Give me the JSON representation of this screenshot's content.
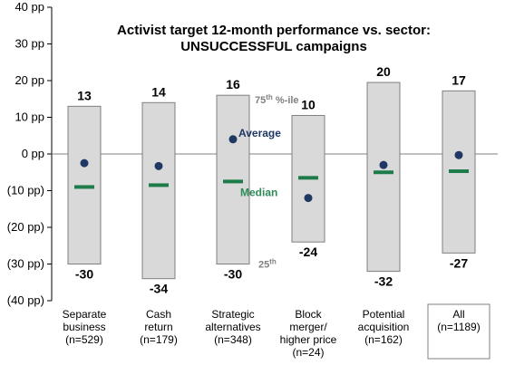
{
  "chart_data": {
    "type": "box-range",
    "title_lines": [
      "Activist target 12-month performance vs. sector:",
      "UNSUCCESSFUL campaigns"
    ],
    "y_ticks": [
      {
        "value": 40,
        "label": "40 pp"
      },
      {
        "value": 30,
        "label": "30 pp"
      },
      {
        "value": 20,
        "label": "20 pp"
      },
      {
        "value": 10,
        "label": "10 pp"
      },
      {
        "value": 0,
        "label": "0 pp"
      },
      {
        "value": -10,
        "label": "(10 pp)"
      },
      {
        "value": -20,
        "label": "(20 pp)"
      },
      {
        "value": -30,
        "label": "(30 pp)"
      },
      {
        "value": -40,
        "label": "(40 pp)"
      }
    ],
    "ylim": [
      -40,
      40
    ],
    "categories": [
      {
        "label_lines": [
          "Separate",
          "business",
          "(n=529)"
        ],
        "p75": 13,
        "p25": -30,
        "average": -2.5,
        "median": -9,
        "top_label": "13",
        "bottom_label": "-30",
        "boxed": false
      },
      {
        "label_lines": [
          "Cash",
          "return",
          "(n=179)"
        ],
        "p75": 14,
        "p25": -34,
        "average": -3.3,
        "median": -8.5,
        "top_label": "14",
        "bottom_label": "-34",
        "boxed": false
      },
      {
        "label_lines": [
          "Strategic",
          "alternatives",
          "(n=348)"
        ],
        "p75": 16,
        "p25": -30,
        "average": 4,
        "median": -7.5,
        "top_label": "16",
        "bottom_label": "-30",
        "boxed": false
      },
      {
        "label_lines": [
          "Block",
          "merger/",
          "higher price",
          "(n=24)"
        ],
        "p75": 10.5,
        "p25": -24,
        "average": -12,
        "median": -6.5,
        "top_label": "10",
        "bottom_label": "-24",
        "boxed": false
      },
      {
        "label_lines": [
          "Potential",
          "acquisition",
          "(n=162)"
        ],
        "p75": 19.5,
        "p25": -32,
        "average": -3,
        "median": -5,
        "top_label": "20",
        "bottom_label": "-32",
        "boxed": false
      },
      {
        "label_lines": [
          "All",
          "(n=1189)"
        ],
        "p75": 17.2,
        "p25": -27,
        "average": -0.3,
        "median": -4.7,
        "top_label": "17",
        "bottom_label": "-27",
        "boxed": true
      }
    ],
    "annotations": {
      "p75_base": "75",
      "p75_sup": "th",
      "p75_suffix": " %-ile",
      "average": "Average",
      "median": "Median",
      "p25_base": "25",
      "p25_sup": "th"
    },
    "colors": {
      "box_fill": "#d9d9d9",
      "box_stroke": "#7f7f7f",
      "average_dot": "#1f3864",
      "median_bar": "#1e7b4a",
      "zero_line": "#808080",
      "annotation_gray": "#808080",
      "annotation_blue": "#1f3864",
      "annotation_green": "#2e8b57"
    }
  }
}
